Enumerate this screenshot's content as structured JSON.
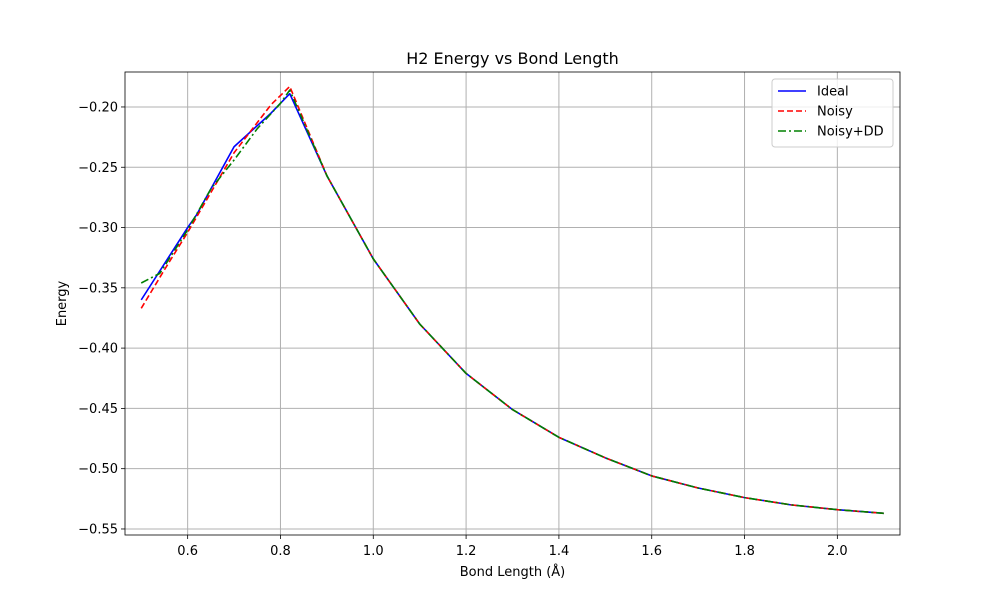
{
  "chart_data": {
    "type": "line",
    "title": "H2 Energy vs Bond Length",
    "xlabel": "Bond Length (Å)",
    "ylabel": "Energy",
    "xlim": [
      0.465,
      2.135
    ],
    "ylim": [
      -0.555,
      -0.171
    ],
    "xticks": [
      0.6,
      0.8,
      1.0,
      1.2,
      1.4,
      1.6,
      1.8,
      2.0
    ],
    "xtick_labels": [
      "0.6",
      "0.8",
      "1.0",
      "1.2",
      "1.4",
      "1.6",
      "1.8",
      "2.0"
    ],
    "yticks": [
      -0.55,
      -0.5,
      -0.45,
      -0.4,
      -0.35,
      -0.3,
      -0.25,
      -0.2
    ],
    "ytick_labels": [
      "−0.55",
      "−0.50",
      "−0.45",
      "−0.40",
      "−0.35",
      "−0.30",
      "−0.25",
      "−0.20"
    ],
    "grid": true,
    "legend_position": "upper-right",
    "series": [
      {
        "name": "Ideal",
        "color": "#0000ff",
        "style": "solid",
        "x": [
          0.5,
          0.6,
          0.62,
          0.7,
          0.78,
          0.82,
          0.9,
          1.0,
          1.1,
          1.2,
          1.3,
          1.4,
          1.5,
          1.6,
          1.7,
          1.8,
          1.9,
          2.0,
          2.1
        ],
        "y": [
          -0.36,
          -0.3,
          -0.289,
          -0.233,
          -0.205,
          -0.189,
          -0.257,
          -0.326,
          -0.38,
          -0.421,
          -0.451,
          -0.474,
          -0.491,
          -0.506,
          -0.516,
          -0.524,
          -0.53,
          -0.534,
          -0.537
        ]
      },
      {
        "name": "Noisy",
        "color": "#ff0000",
        "style": "dashed",
        "x": [
          0.5,
          0.55,
          0.6,
          0.7,
          0.78,
          0.82,
          0.9,
          1.0,
          1.1,
          1.2,
          1.3,
          1.4,
          1.5,
          1.6,
          1.7,
          1.8,
          1.9,
          2.0,
          2.1
        ],
        "y": [
          -0.367,
          -0.335,
          -0.304,
          -0.238,
          -0.198,
          -0.183,
          -0.257,
          -0.326,
          -0.38,
          -0.421,
          -0.451,
          -0.474,
          -0.491,
          -0.506,
          -0.516,
          -0.524,
          -0.53,
          -0.534,
          -0.537
        ]
      },
      {
        "name": "Noisy+DD",
        "color": "#008000",
        "style": "dashdot",
        "x": [
          0.5,
          0.54,
          0.6,
          0.65,
          0.7,
          0.75,
          0.8,
          0.82,
          0.9,
          1.0,
          1.1,
          1.2,
          1.3,
          1.4,
          1.5,
          1.6,
          1.7,
          1.8,
          1.9,
          2.0,
          2.1
        ],
        "y": [
          -0.346,
          -0.338,
          -0.302,
          -0.268,
          -0.244,
          -0.218,
          -0.197,
          -0.186,
          -0.257,
          -0.326,
          -0.38,
          -0.421,
          -0.451,
          -0.474,
          -0.491,
          -0.506,
          -0.516,
          -0.524,
          -0.53,
          -0.534,
          -0.537
        ]
      }
    ]
  }
}
